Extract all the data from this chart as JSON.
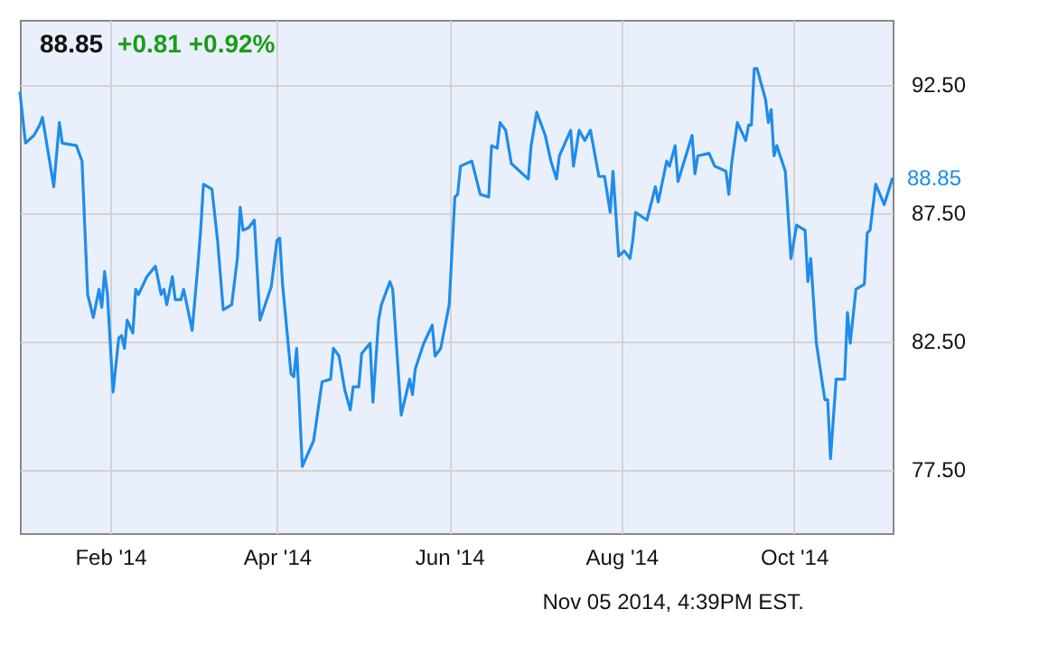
{
  "chart_data": {
    "type": "line",
    "title": "88.85",
    "subtitle": "+0.81 +0.92%",
    "annotations": [
      {
        "text": "88.85",
        "x": "2014-11-05",
        "y": 88.85
      },
      "Nov 05 2014, 4:39PM EST."
    ],
    "x": [
      "2013-12-31",
      "2014-01-02",
      "2014-01-05",
      "2014-01-07",
      "2014-01-08",
      "2014-01-12",
      "2014-01-14",
      "2014-01-15",
      "2014-01-20",
      "2014-01-22",
      "2014-01-24",
      "2014-01-26",
      "2014-01-28",
      "2014-01-29",
      "2014-01-30",
      "2014-01-31",
      "2014-02-02",
      "2014-02-04",
      "2014-02-05",
      "2014-02-06",
      "2014-02-07",
      "2014-02-09",
      "2014-02-10",
      "2014-02-11",
      "2014-02-14",
      "2014-02-17",
      "2014-02-19",
      "2014-02-20",
      "2014-02-21",
      "2014-02-23",
      "2014-02-24",
      "2014-02-26",
      "2014-02-27",
      "2014-03-02",
      "2014-03-04",
      "2014-03-05",
      "2014-03-06",
      "2014-03-09",
      "2014-03-11",
      "2014-03-13",
      "2014-03-16",
      "2014-03-18",
      "2014-03-19",
      "2014-03-20",
      "2014-03-22",
      "2014-03-24",
      "2014-03-26",
      "2014-03-30",
      "2014-04-01",
      "2014-04-02",
      "2014-04-03",
      "2014-04-06",
      "2014-04-07",
      "2014-04-08",
      "2014-04-10",
      "2014-04-14",
      "2014-04-17",
      "2014-04-20",
      "2014-04-21",
      "2014-04-23",
      "2014-04-25",
      "2014-04-27",
      "2014-04-28",
      "2014-04-30",
      "2014-05-01",
      "2014-05-04",
      "2014-05-05",
      "2014-05-07",
      "2014-05-08",
      "2014-05-11",
      "2014-05-12",
      "2014-05-15",
      "2014-05-18",
      "2014-05-19",
      "2014-05-20",
      "2014-05-23",
      "2014-05-26",
      "2014-05-27",
      "2014-05-29",
      "2014-06-01",
      "2014-06-03",
      "2014-06-04",
      "2014-06-05",
      "2014-06-09",
      "2014-06-12",
      "2014-06-15",
      "2014-06-16",
      "2014-06-18",
      "2014-06-19",
      "2014-06-21",
      "2014-06-23",
      "2014-06-29",
      "2014-06-30",
      "2014-07-02",
      "2014-07-05",
      "2014-07-07",
      "2014-07-09",
      "2014-07-10",
      "2014-07-14",
      "2014-07-15",
      "2014-07-17",
      "2014-07-19",
      "2014-07-21",
      "2014-07-24",
      "2014-07-26",
      "2014-07-28",
      "2014-07-29",
      "2014-07-31",
      "2014-08-02",
      "2014-08-04",
      "2014-08-05",
      "2014-08-06",
      "2014-08-10",
      "2014-08-13",
      "2014-08-14",
      "2014-08-17",
      "2014-08-18",
      "2014-08-20",
      "2014-08-21",
      "2014-08-26",
      "2014-08-27",
      "2014-08-28",
      "2014-09-01",
      "2014-09-03",
      "2014-09-07",
      "2014-09-08",
      "2014-09-09",
      "2014-09-11",
      "2014-09-14",
      "2014-09-15",
      "2014-09-16",
      "2014-09-17",
      "2014-09-18",
      "2014-09-21",
      "2014-09-22",
      "2014-09-23",
      "2014-09-24",
      "2014-09-25",
      "2014-09-28",
      "2014-09-30",
      "2014-10-02",
      "2014-10-05",
      "2014-10-06",
      "2014-10-07",
      "2014-10-09",
      "2014-10-12",
      "2014-10-13",
      "2014-10-14",
      "2014-10-16",
      "2014-10-19",
      "2014-10-20",
      "2014-10-21",
      "2014-10-23",
      "2014-10-26",
      "2014-10-27",
      "2014-10-28",
      "2014-10-30",
      "2014-11-02",
      "2014-11-05"
    ],
    "series": [
      {
        "color": "#1f8ceb",
        "values": [
          92.2,
          90.2,
          90.5,
          90.9,
          91.2,
          88.5,
          91.0,
          90.2,
          90.1,
          89.5,
          84.3,
          83.4,
          84.5,
          83.8,
          85.2,
          84.3,
          80.5,
          82.6,
          82.7,
          82.2,
          83.3,
          82.8,
          84.5,
          84.3,
          85.0,
          85.4,
          84.3,
          84.5,
          83.9,
          85.0,
          84.1,
          84.1,
          84.5,
          82.9,
          85.4,
          86.8,
          88.6,
          88.4,
          86.4,
          83.7,
          83.9,
          85.7,
          87.7,
          86.8,
          86.9,
          87.2,
          83.3,
          84.6,
          86.4,
          86.5,
          84.7,
          81.2,
          81.1,
          82.2,
          77.6,
          78.6,
          80.9,
          81.0,
          82.2,
          81.9,
          80.6,
          79.8,
          80.7,
          80.7,
          82.0,
          82.4,
          80.1,
          83.3,
          83.9,
          84.8,
          84.5,
          79.6,
          81.0,
          80.4,
          81.4,
          82.4,
          83.1,
          81.9,
          82.2,
          83.9,
          88.1,
          88.2,
          89.3,
          89.5,
          88.2,
          88.1,
          90.1,
          90.0,
          91.0,
          90.7,
          89.4,
          88.8,
          90.1,
          91.4,
          90.5,
          89.5,
          88.8,
          89.7,
          90.7,
          89.3,
          90.7,
          90.3,
          90.7,
          88.9,
          88.9,
          87.5,
          89.1,
          85.8,
          86.0,
          85.7,
          86.4,
          87.5,
          87.2,
          88.5,
          87.9,
          89.5,
          89.3,
          90.1,
          88.7,
          90.5,
          89.0,
          89.7,
          89.8,
          89.3,
          89.1,
          88.2,
          89.4,
          91.0,
          90.3,
          90.9,
          90.9,
          93.1,
          93.1,
          91.9,
          91.0,
          91.5,
          89.7,
          90.1,
          89.1,
          85.7,
          87.0,
          86.8,
          84.8,
          85.7,
          82.4,
          80.2,
          80.2,
          77.9,
          81.0,
          81.0,
          83.6,
          82.4,
          84.5,
          84.7,
          86.7,
          86.8,
          88.6,
          87.8,
          88.85
        ]
      }
    ],
    "xlim": [
      "2013-12-31",
      "2014-11-05"
    ],
    "xticks": [
      {
        "value": "2014-02-01",
        "label": "Feb '14"
      },
      {
        "value": "2014-04-01",
        "label": "Apr '14"
      },
      {
        "value": "2014-06-01",
        "label": "Jun '14"
      },
      {
        "value": "2014-08-01",
        "label": "Aug '14"
      },
      {
        "value": "2014-10-01",
        "label": "Oct '14"
      }
    ],
    "ylim": [
      75,
      95
    ],
    "yticks": [
      {
        "value": 77.5,
        "label": "77.50"
      },
      {
        "value": 82.5,
        "label": "82.50"
      },
      {
        "value": 87.5,
        "label": "87.50"
      },
      {
        "value": 92.5,
        "label": "92.50"
      }
    ],
    "grid": true
  }
}
